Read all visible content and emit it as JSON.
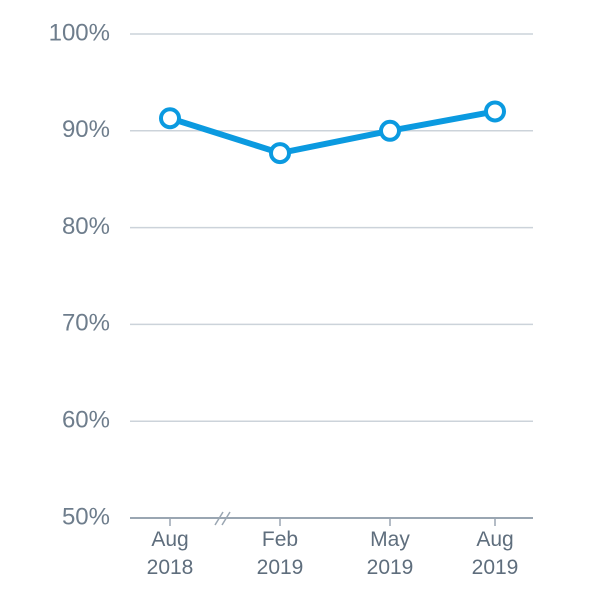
{
  "chart_data": {
    "type": "line",
    "categories": [
      "Aug 2018",
      "Feb 2019",
      "May 2019",
      "Aug 2019"
    ],
    "series": [
      {
        "name": null,
        "color": "#0b9ae0",
        "values": [
          91.3,
          87.7,
          90.0,
          92.0
        ]
      }
    ],
    "ylim": [
      50,
      100
    ],
    "yticks": [
      {
        "value": 50,
        "label": "50%"
      },
      {
        "value": 60,
        "label": "60%"
      },
      {
        "value": 70,
        "label": "70%"
      },
      {
        "value": 80,
        "label": "80%"
      },
      {
        "value": 90,
        "label": "90%"
      },
      {
        "value": 100,
        "label": "100%"
      }
    ],
    "grid": true
  }
}
